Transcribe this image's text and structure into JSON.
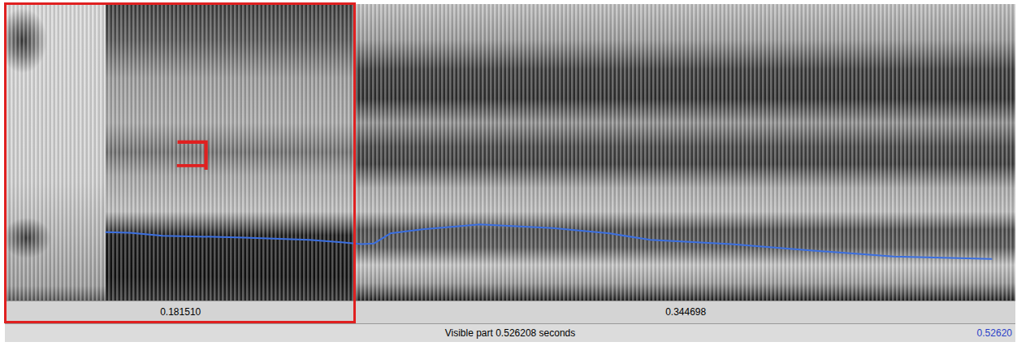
{
  "chart_data": {
    "type": "line",
    "x": [
      0.0517,
      0.064,
      0.0813,
      0.1237,
      0.1576,
      0.1746,
      0.185,
      0.1915,
      0.2,
      0.2169,
      0.2466,
      0.2847,
      0.3144,
      0.3356,
      0.3779,
      0.4203,
      0.4626,
      0.5135
    ],
    "values": [
      116,
      115,
      110,
      107,
      103,
      99,
      96,
      97,
      114,
      121,
      129,
      123,
      114,
      103,
      96,
      85,
      75,
      71
    ],
    "color": "#3b6fe0",
    "xlim": [
      0,
      0.526208
    ],
    "ylim": [
      0,
      500
    ],
    "tick_labels": false,
    "intervals": [
      {
        "value": 0.18151,
        "label": "0.181510"
      },
      {
        "value": 0.344698,
        "label": "0.344698"
      }
    ],
    "visible_text": "Visible part 0.526208 seconds",
    "end_label": "0.52620",
    "highlight": {
      "xlim": [
        0,
        0.18151
      ],
      "color": "#e02020"
    },
    "annotation": {
      "text": "コ",
      "color": "#e02020"
    }
  }
}
